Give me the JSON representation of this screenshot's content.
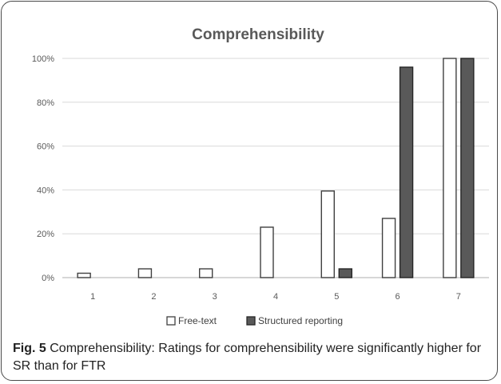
{
  "caption": {
    "label": "Fig. 5",
    "text": "Comprehensibility: Ratings for comprehensibility were significantly higher for SR than for FTR"
  },
  "colors": {
    "free_text_fill": "#ffffff",
    "free_text_stroke": "#404040",
    "structured_fill": "#595959",
    "structured_stroke": "#262626",
    "grid": "#d9d9d9",
    "axis": "#bfbfbf",
    "text": "#595959"
  },
  "chart_data": {
    "type": "bar",
    "title": "Comprehensibility",
    "xlabel": "",
    "ylabel": "",
    "categories": [
      "1",
      "2",
      "3",
      "4",
      "5",
      "6",
      "7"
    ],
    "series": [
      {
        "name": "Free-text",
        "values": [
          2,
          4,
          4,
          23,
          39.5,
          27,
          100
        ]
      },
      {
        "name": "Structured reporting",
        "values": [
          0,
          0,
          0,
          0,
          4,
          96,
          100
        ]
      }
    ],
    "ylim": [
      0,
      100
    ],
    "yticks": [
      "0%",
      "20%",
      "40%",
      "60%",
      "80%",
      "100%"
    ],
    "ytick_values": [
      0,
      20,
      40,
      60,
      80,
      100
    ],
    "grid": true,
    "legend_position": "bottom"
  }
}
